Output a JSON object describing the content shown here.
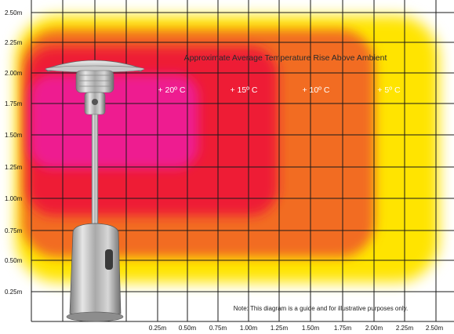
{
  "title": "Approximate Average Temperature Rise Above Ambient",
  "note": "Note: This diagram is a guide and for illustrative purposes only.",
  "y_axis": {
    "unit": "m",
    "ticks": [
      "0.25m",
      "0.50m",
      "0.75m",
      "1.00m",
      "1.25m",
      "1.50m",
      "1.75m",
      "2.00m",
      "2.25m",
      "2.50m"
    ]
  },
  "x_axis": {
    "unit": "m",
    "ticks": [
      "0.25m",
      "0.50m",
      "0.75m",
      "1.00m",
      "1.25m",
      "1.50m",
      "1.75m",
      "2.00m",
      "2.25m",
      "2.50m"
    ]
  },
  "zones": [
    {
      "label": "+ 20º C",
      "color": "#ee1a90",
      "extent_m": 1.25
    },
    {
      "label": "+ 15º C",
      "color": "#ee1e36",
      "extent_m": 1.75
    },
    {
      "label": "+ 10º C",
      "color": "#f26c22",
      "extent_m": 2.25
    },
    {
      "label": "+ 5º C",
      "color": "#ffe400",
      "extent_m": 2.5
    }
  ],
  "colors": {
    "grid": "#1a1a1a",
    "background": "#ffffff",
    "heater_metal": "#b8b8b8"
  },
  "illustration": {
    "icon": "patio-heater-icon"
  }
}
